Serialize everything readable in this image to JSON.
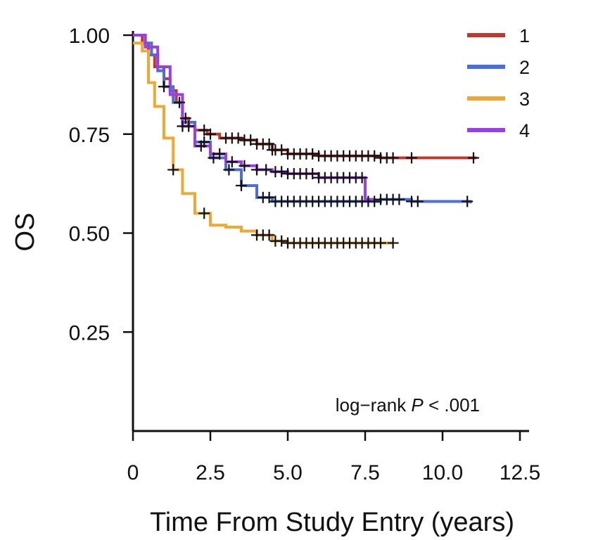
{
  "chart_data": {
    "type": "line",
    "xlabel": "Time From Study Entry (years)",
    "ylabel": "OS",
    "xlim": [
      0,
      12.5
    ],
    "ylim": [
      0,
      1.0
    ],
    "x_ticks": [
      "0",
      "2.5",
      "5.0",
      "7.5",
      "10.0",
      "12.5"
    ],
    "y_ticks": [
      "0.25",
      "0.50",
      "0.75",
      "1.00"
    ],
    "legend_position": "top-right",
    "annotation": {
      "prefix": "log−rank ",
      "italic": "P",
      "suffix": " < .001"
    },
    "series": [
      {
        "name": "1",
        "color": "#c0392b",
        "points": [
          [
            0,
            1.0
          ],
          [
            0.3,
            0.98
          ],
          [
            0.5,
            0.95
          ],
          [
            0.7,
            0.92
          ],
          [
            1.0,
            0.89
          ],
          [
            1.2,
            0.86
          ],
          [
            1.4,
            0.83
          ],
          [
            1.6,
            0.79
          ],
          [
            1.8,
            0.77
          ],
          [
            2.0,
            0.76
          ],
          [
            2.4,
            0.75
          ],
          [
            2.8,
            0.74
          ],
          [
            3.5,
            0.735
          ],
          [
            4.0,
            0.725
          ],
          [
            4.5,
            0.71
          ],
          [
            5.0,
            0.7
          ],
          [
            6.0,
            0.695
          ],
          [
            8.0,
            0.69
          ],
          [
            11.1,
            0.69
          ]
        ],
        "censor_x": [
          1.7,
          2.3,
          2.5,
          3.0,
          3.2,
          3.4,
          3.6,
          3.8,
          4.0,
          4.2,
          4.4,
          4.5,
          4.6,
          4.8,
          5.0,
          5.2,
          5.4,
          5.6,
          5.8,
          6.0,
          6.2,
          6.4,
          6.6,
          6.8,
          7.0,
          7.2,
          7.4,
          7.6,
          7.8,
          8.0,
          8.2,
          8.4,
          9.0,
          11.0
        ]
      },
      {
        "name": "2",
        "color": "#4a6fd8",
        "points": [
          [
            0,
            1.0
          ],
          [
            0.4,
            0.98
          ],
          [
            0.6,
            0.95
          ],
          [
            0.8,
            0.91
          ],
          [
            1.0,
            0.87
          ],
          [
            1.3,
            0.83
          ],
          [
            1.6,
            0.78
          ],
          [
            2.0,
            0.73
          ],
          [
            2.5,
            0.69
          ],
          [
            3.0,
            0.66
          ],
          [
            3.5,
            0.62
          ],
          [
            4.0,
            0.59
          ],
          [
            4.5,
            0.58
          ],
          [
            6.0,
            0.58
          ],
          [
            8.0,
            0.585
          ],
          [
            9.0,
            0.58
          ],
          [
            10.9,
            0.575
          ]
        ],
        "censor_x": [
          1.0,
          1.5,
          2.3,
          2.6,
          3.1,
          3.5,
          4.2,
          4.4,
          4.6,
          4.8,
          5.0,
          5.2,
          5.4,
          5.6,
          5.8,
          6.0,
          6.2,
          6.4,
          6.6,
          6.8,
          7.0,
          7.2,
          7.4,
          7.6,
          7.8,
          8.0,
          8.2,
          8.4,
          8.6,
          9.0,
          9.2,
          10.8
        ]
      },
      {
        "name": "3",
        "color": "#f0a830",
        "points": [
          [
            0,
            0.98
          ],
          [
            0.3,
            0.96
          ],
          [
            0.5,
            0.88
          ],
          [
            0.7,
            0.82
          ],
          [
            1.0,
            0.74
          ],
          [
            1.3,
            0.66
          ],
          [
            1.6,
            0.6
          ],
          [
            2.0,
            0.55
          ],
          [
            2.5,
            0.52
          ],
          [
            3.0,
            0.515
          ],
          [
            3.5,
            0.505
          ],
          [
            4.0,
            0.495
          ],
          [
            4.5,
            0.48
          ],
          [
            5.0,
            0.475
          ],
          [
            6.0,
            0.475
          ],
          [
            7.0,
            0.475
          ],
          [
            8.4,
            0.475
          ]
        ],
        "censor_x": [
          1.3,
          2.3,
          4.0,
          4.2,
          4.4,
          4.6,
          4.8,
          5.0,
          5.2,
          5.4,
          5.6,
          5.8,
          6.0,
          6.2,
          6.4,
          6.6,
          6.8,
          7.0,
          7.2,
          7.4,
          7.6,
          7.8,
          8.0,
          8.4
        ]
      },
      {
        "name": "4",
        "color": "#9b3ee8",
        "points": [
          [
            0,
            1.0
          ],
          [
            0.4,
            0.97
          ],
          [
            0.8,
            0.92
          ],
          [
            1.2,
            0.85
          ],
          [
            1.6,
            0.77
          ],
          [
            2.0,
            0.72
          ],
          [
            2.5,
            0.7
          ],
          [
            3.0,
            0.68
          ],
          [
            3.5,
            0.67
          ],
          [
            4.0,
            0.66
          ],
          [
            4.5,
            0.655
          ],
          [
            5.0,
            0.65
          ],
          [
            6.0,
            0.64
          ],
          [
            7.0,
            0.64
          ],
          [
            7.5,
            0.635
          ],
          [
            7.5,
            0.585
          ],
          [
            7.8,
            0.585
          ]
        ],
        "censor_x": [
          1.6,
          1.8,
          2.2,
          2.8,
          3.2,
          3.6,
          4.0,
          4.3,
          4.6,
          4.8,
          5.0,
          5.2,
          5.4,
          5.6,
          5.8,
          6.0,
          6.2,
          6.4,
          6.6,
          6.8,
          7.0,
          7.2,
          7.4
        ]
      }
    ]
  }
}
